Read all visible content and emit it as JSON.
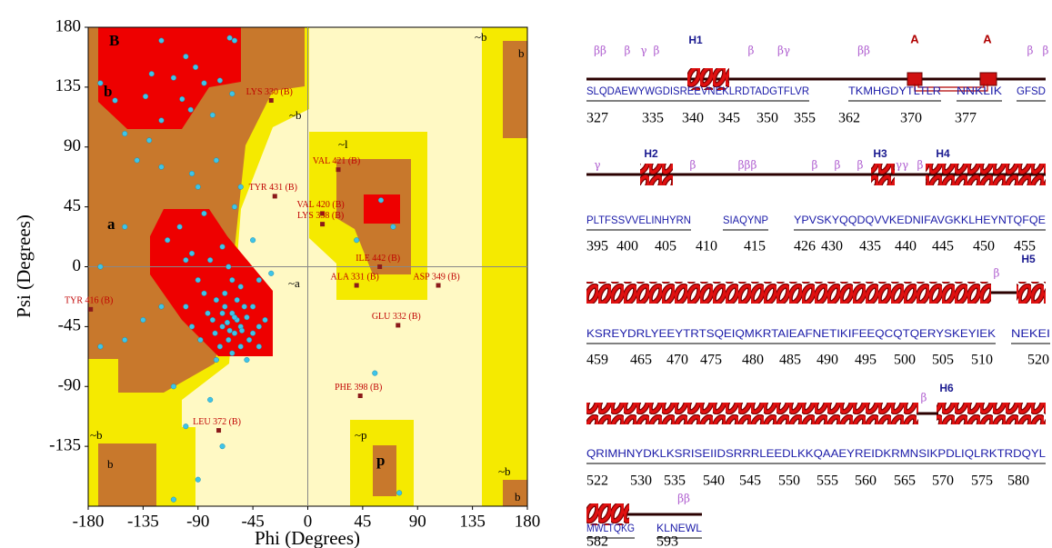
{
  "chart_data": {
    "type": "scatter",
    "xlabel": "Phi (Degrees)",
    "ylabel": "Psi (Degrees)",
    "xlim": [
      -180,
      180
    ],
    "ylim": [
      -180,
      180
    ],
    "xticks": [
      -180,
      -135,
      -90,
      -45,
      0,
      45,
      90,
      135,
      180
    ],
    "yticks": [
      -135,
      -90,
      -45,
      0,
      45,
      90,
      135,
      180
    ],
    "region_labels": [
      "B",
      "b",
      "~b",
      "a",
      "~a",
      "~l",
      "~b",
      "b",
      "~b",
      "b",
      "~p",
      "p",
      "~b",
      "b"
    ],
    "points": {
      "color": "#3fc4e8",
      "x": [
        -120,
        -64,
        -100,
        -92,
        -128,
        -110,
        -85,
        -72,
        -133,
        -103,
        -96,
        -78,
        -60,
        -150,
        -170,
        -158,
        -120,
        -62,
        -130,
        -140,
        -120,
        -95,
        -90,
        -75,
        -85,
        -60,
        -105,
        -150,
        -170,
        -115,
        -100,
        -55,
        -45,
        -40,
        -30,
        -80,
        -110,
        -120,
        -135,
        -150,
        -170,
        -100,
        -70,
        -90,
        -110,
        55,
        75,
        70,
        60,
        40,
        -95,
        -80,
        -70,
        -65,
        -90,
        -85,
        -75,
        -68,
        -62,
        -58,
        -55,
        -50,
        -45,
        -60,
        -70,
        -78,
        -82,
        -65,
        -55,
        -48,
        -40,
        -35,
        -72,
        -62,
        -52,
        -58,
        -66,
        -60,
        -54,
        -64,
        -70,
        -76,
        -45,
        -100,
        -95,
        -88,
        -68,
        -55,
        -62,
        -75,
        -50,
        -40
      ],
      "y": [
        170,
        172,
        158,
        150,
        145,
        142,
        138,
        140,
        128,
        126,
        118,
        114,
        170,
        100,
        138,
        125,
        110,
        130,
        95,
        80,
        75,
        70,
        60,
        80,
        40,
        45,
        30,
        30,
        0,
        20,
        5,
        60,
        20,
        -10,
        -5,
        -100,
        -90,
        -30,
        -40,
        -55,
        -60,
        -120,
        -135,
        -160,
        -175,
        -80,
        -170,
        30,
        50,
        20,
        10,
        5,
        15,
        0,
        -10,
        -20,
        -25,
        -30,
        -35,
        -40,
        -45,
        -38,
        -50,
        -50,
        -45,
        -40,
        -35,
        -55,
        -60,
        -55,
        -45,
        -40,
        -60,
        -65,
        -30,
        -25,
        -42,
        -38,
        -48,
        -48,
        -35,
        -50,
        -30,
        -30,
        -45,
        -55,
        -20,
        -15,
        -10,
        -70,
        -70,
        -60
      ]
    },
    "outliers": {
      "color": "#8b1a1a",
      "labels": [
        "LYS 330 (B)",
        "VAL 421 (B)",
        "TYR 431 (B)",
        "VAL 420 (B)",
        "LYS 338 (B)",
        "ILE 442 (B)",
        "ALA 331 (B)",
        "ASP 349 (B)",
        "TYR 416 (B)",
        "GLU 332 (B)",
        "PHE 398 (B)",
        "LEU 372 (B)"
      ],
      "x": [
        -30,
        25,
        -27,
        12,
        12,
        59,
        40,
        107,
        -178,
        74,
        43,
        -73
      ],
      "y": [
        125,
        73,
        53,
        40,
        32,
        0,
        -14,
        -14,
        -32,
        -44,
        -97,
        -123
      ]
    }
  },
  "sequence_panel": {
    "rows": [
      {
        "sequences": [
          "SLQDAEWYWGDISREEVNEKLRDTADGTFLVR",
          "TKMHGDYTLTLR",
          "NNKLIK",
          "GFSD"
        ],
        "numbers": [
          327,
          335,
          340,
          345,
          350,
          355,
          362,
          370,
          377
        ],
        "annotations": [
          "ββ",
          "β",
          "γ",
          "β",
          "H1",
          "β",
          "βγ",
          "ββ",
          "A",
          "A",
          "β",
          "β"
        ]
      },
      {
        "sequences": [
          "PLTFSSVVELINHYRN",
          "SIAQYNP",
          "YPVSKYQQDQVVKEDNIFAVGKKLHEYNTQFQE"
        ],
        "numbers": [
          395,
          400,
          405,
          410,
          415,
          426,
          430,
          435,
          440,
          445,
          450,
          455
        ],
        "annotations": [
          "γ",
          "H2",
          "β",
          "βββ",
          "β",
          "β",
          "β",
          "H3",
          "γγ",
          "β",
          "H4"
        ]
      },
      {
        "sequences": [
          "KSREYDRLYEEYTRTSQEIQMKRTAIEAFNETIKIFEEQCQTQERYSKEYIEK",
          "NEKEI"
        ],
        "numbers": [
          459,
          465,
          470,
          475,
          480,
          485,
          490,
          495,
          500,
          505,
          510,
          520
        ],
        "annotations": [
          "β",
          "H5"
        ]
      },
      {
        "sequences": [
          "QRIMHNYDKLKSRISEIIDSRRRLEEDLKKQAAEYREIDKRMNSIKPDLIQLRKTRDQYL"
        ],
        "numbers": [
          522,
          530,
          535,
          540,
          545,
          550,
          555,
          560,
          565,
          570,
          575,
          580
        ],
        "annotations": [
          "β",
          "H6"
        ]
      },
      {
        "sequences": [
          "MWLTQKG",
          "KLNEWL"
        ],
        "numbers": [
          582,
          593
        ],
        "annotations": [
          "ββ"
        ]
      }
    ]
  }
}
